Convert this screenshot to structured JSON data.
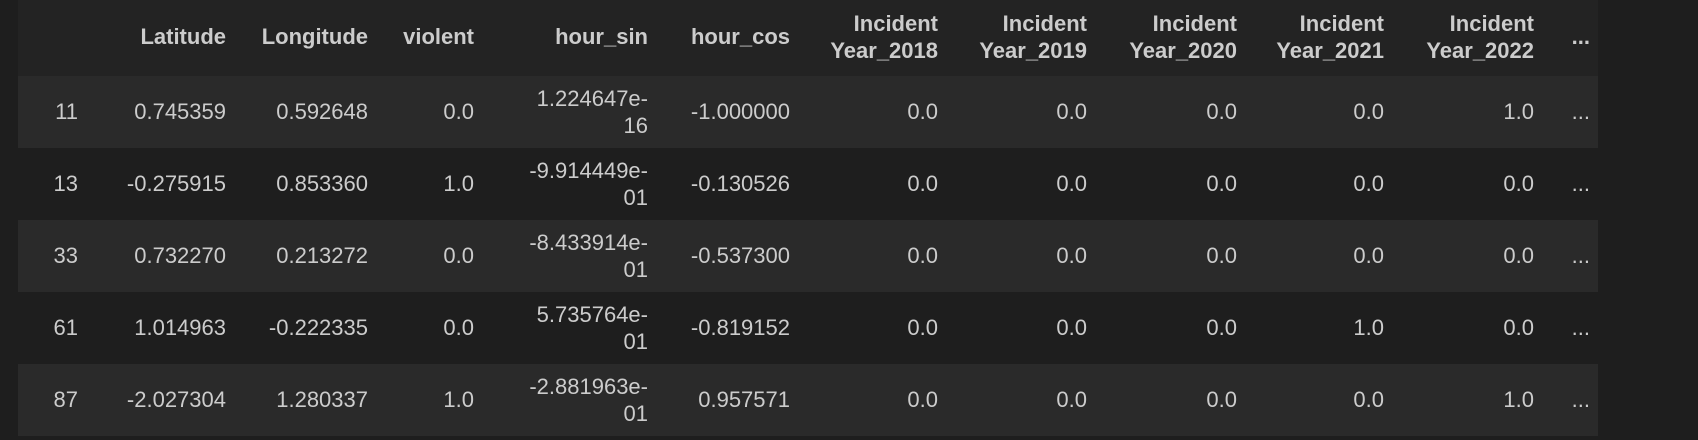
{
  "table": {
    "columns": [
      {
        "key": "idx",
        "label": ""
      },
      {
        "key": "latitude",
        "label": "Latitude"
      },
      {
        "key": "longitude",
        "label": "Longitude"
      },
      {
        "key": "violent",
        "label": "violent"
      },
      {
        "key": "hour_sin",
        "label": "hour_sin"
      },
      {
        "key": "hour_cos",
        "label": "hour_cos"
      },
      {
        "key": "iy2018",
        "label_line1": "Incident",
        "label_line2": "Year_2018"
      },
      {
        "key": "iy2019",
        "label_line1": "Incident",
        "label_line2": "Year_2019"
      },
      {
        "key": "iy2020",
        "label_line1": "Incident",
        "label_line2": "Year_2020"
      },
      {
        "key": "iy2021",
        "label_line1": "Incident",
        "label_line2": "Year_2021"
      },
      {
        "key": "iy2022",
        "label_line1": "Incident",
        "label_line2": "Year_2022"
      },
      {
        "key": "more",
        "label": "..."
      }
    ],
    "rows": [
      {
        "idx": "11",
        "latitude": "0.745359",
        "longitude": "0.592648",
        "violent": "0.0",
        "hour_sin_1": "1.224647e-",
        "hour_sin_2": "16",
        "hour_cos": "-1.000000",
        "iy2018": "0.0",
        "iy2019": "0.0",
        "iy2020": "0.0",
        "iy2021": "0.0",
        "iy2022": "1.0",
        "more": "..."
      },
      {
        "idx": "13",
        "latitude": "-0.275915",
        "longitude": "0.853360",
        "violent": "1.0",
        "hour_sin_1": "-9.914449e-",
        "hour_sin_2": "01",
        "hour_cos": "-0.130526",
        "iy2018": "0.0",
        "iy2019": "0.0",
        "iy2020": "0.0",
        "iy2021": "0.0",
        "iy2022": "0.0",
        "more": "..."
      },
      {
        "idx": "33",
        "latitude": "0.732270",
        "longitude": "0.213272",
        "violent": "0.0",
        "hour_sin_1": "-8.433914e-",
        "hour_sin_2": "01",
        "hour_cos": "-0.537300",
        "iy2018": "0.0",
        "iy2019": "0.0",
        "iy2020": "0.0",
        "iy2021": "0.0",
        "iy2022": "0.0",
        "more": "..."
      },
      {
        "idx": "61",
        "latitude": "1.014963",
        "longitude": "-0.222335",
        "violent": "0.0",
        "hour_sin_1": "5.735764e-",
        "hour_sin_2": "01",
        "hour_cos": "-0.819152",
        "iy2018": "0.0",
        "iy2019": "0.0",
        "iy2020": "0.0",
        "iy2021": "1.0",
        "iy2022": "0.0",
        "more": "..."
      },
      {
        "idx": "87",
        "latitude": "-2.027304",
        "longitude": "1.280337",
        "violent": "1.0",
        "hour_sin_1": "-2.881963e-",
        "hour_sin_2": "01",
        "hour_cos": "0.957571",
        "iy2018": "0.0",
        "iy2019": "0.0",
        "iy2020": "0.0",
        "iy2021": "0.0",
        "iy2022": "1.0",
        "more": "..."
      }
    ]
  }
}
